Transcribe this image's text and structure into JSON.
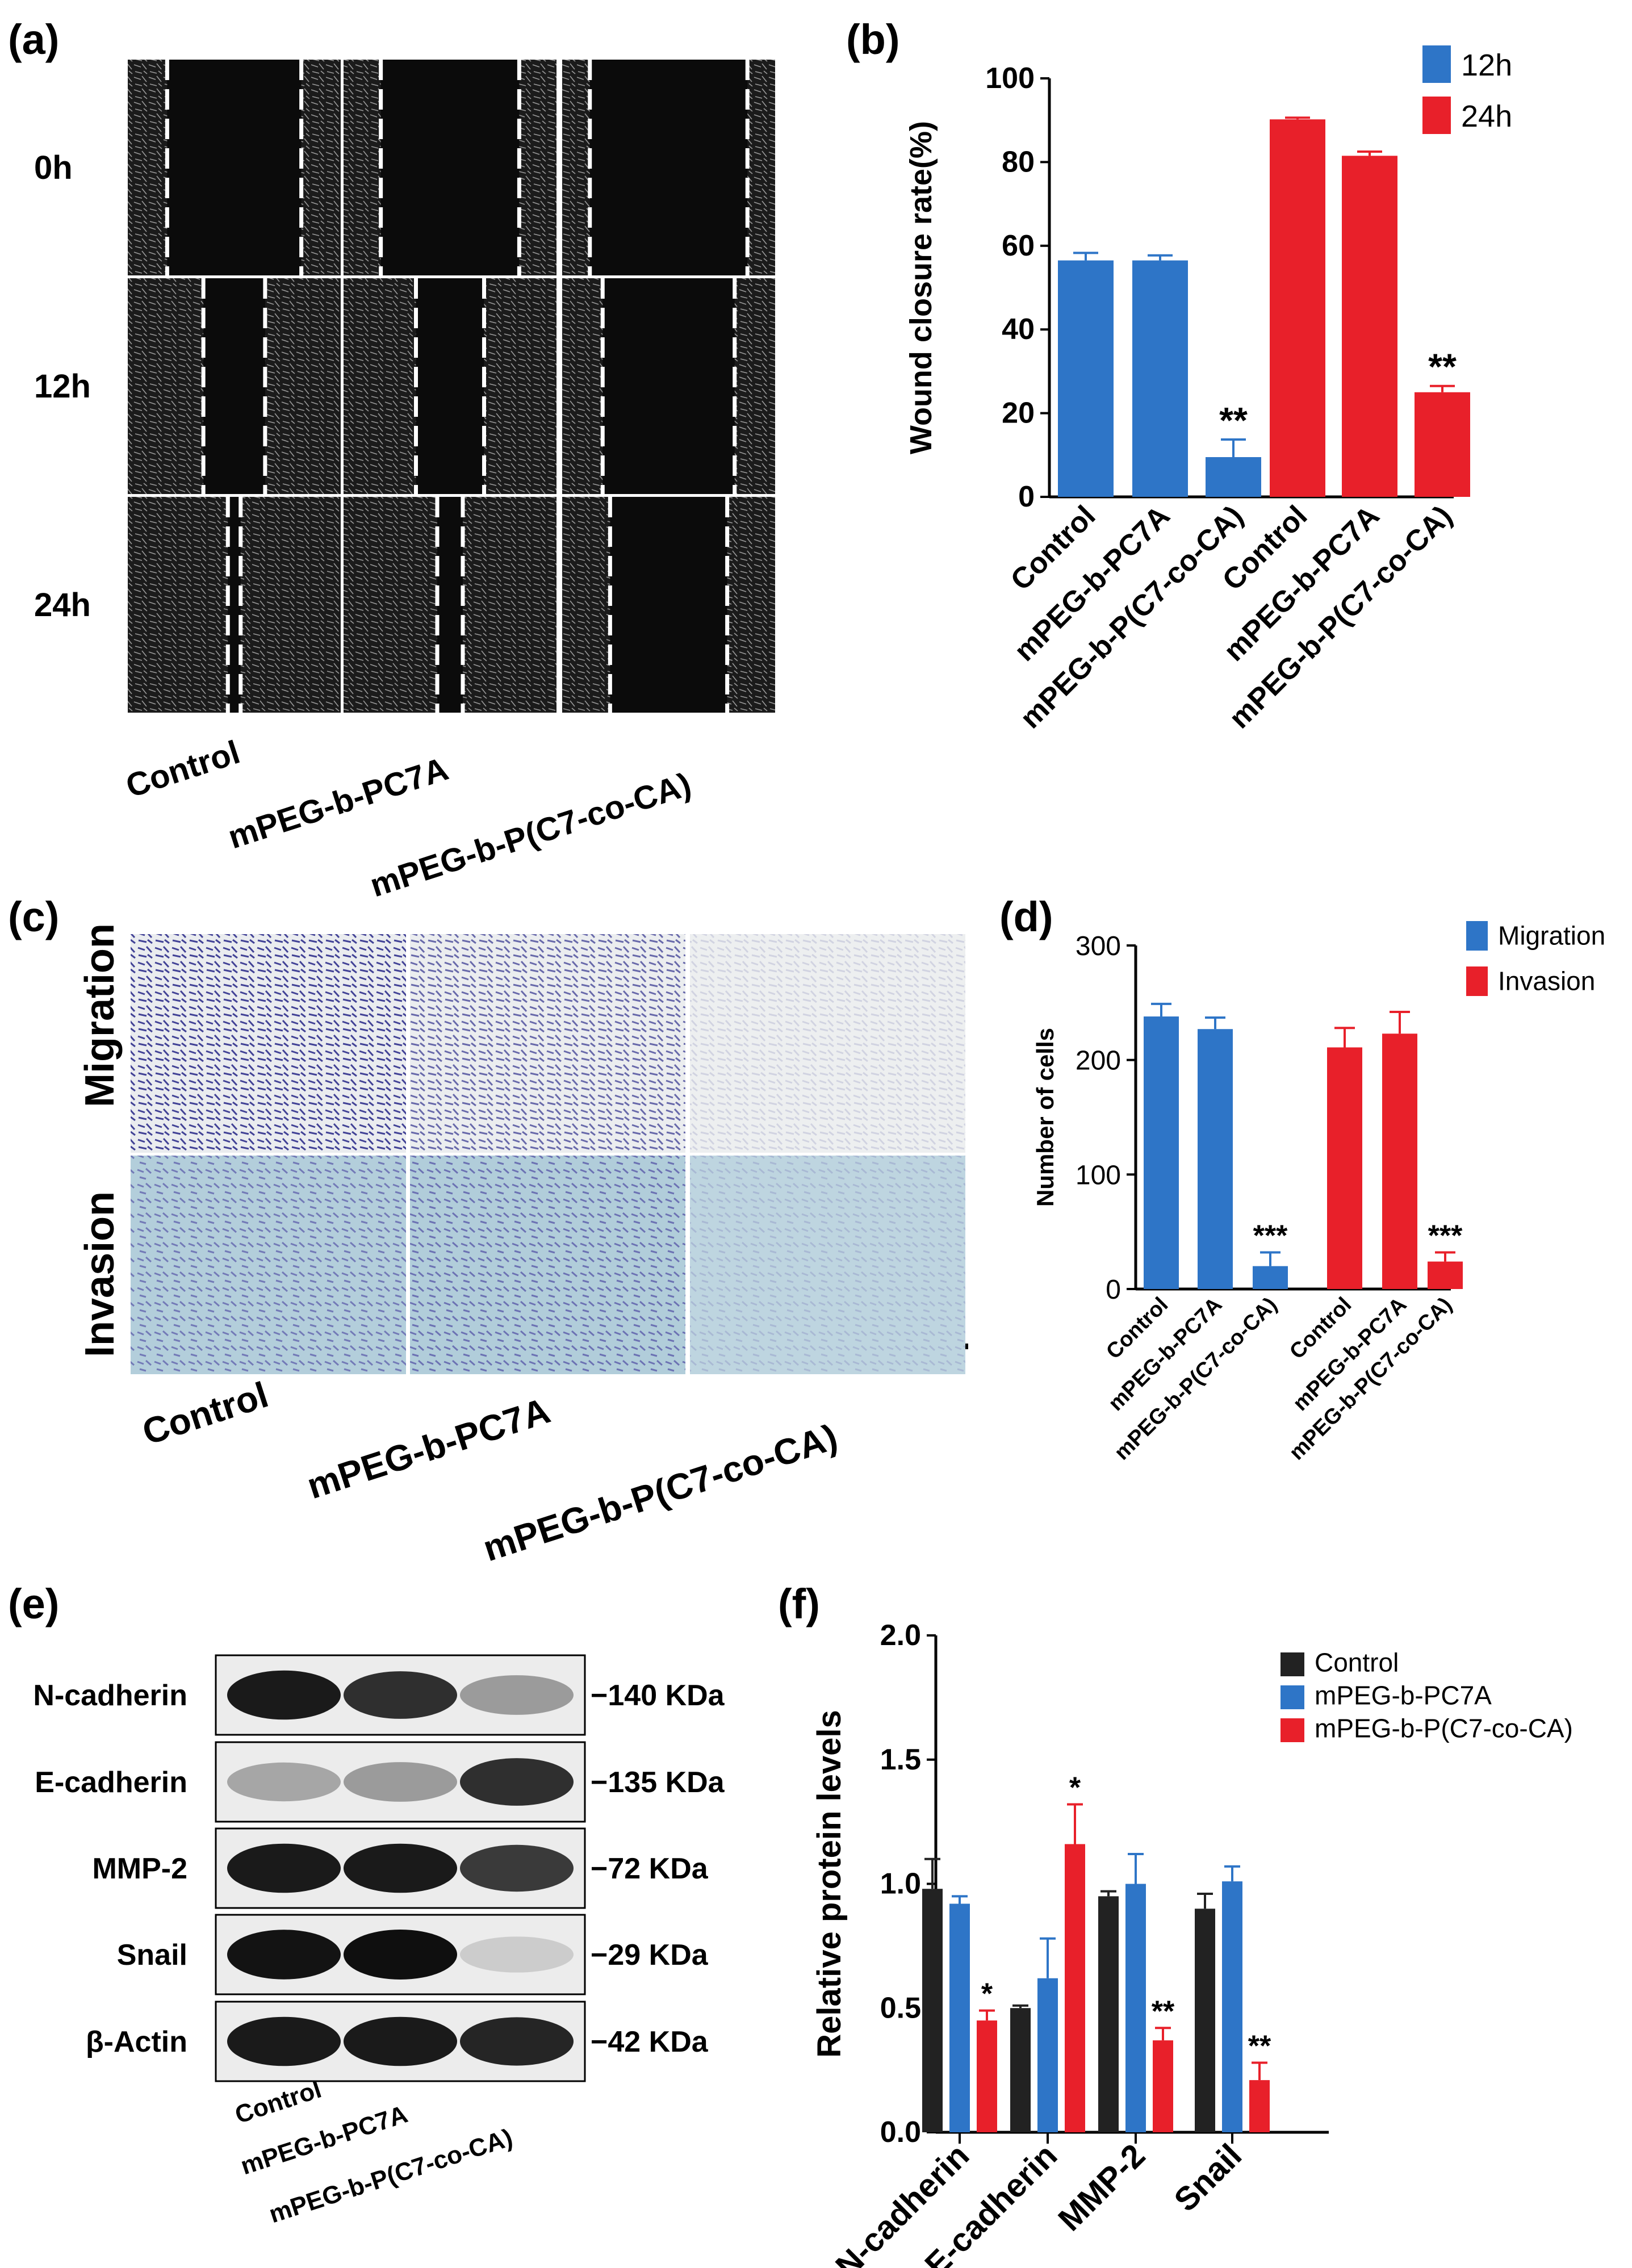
{
  "colors": {
    "blue": "#2e75c7",
    "red": "#e8202a",
    "black": "#1a1a1a",
    "gray_bar": "#222222"
  },
  "panel_a": {
    "label": "(a)",
    "rows": [
      "0h",
      "12h",
      "24h"
    ],
    "columns": [
      "Control",
      "mPEG-b-PC7A",
      "mPEG-b-P(C7-co-CA)"
    ],
    "gap_fractions": [
      [
        0.63,
        0.65,
        0.74
      ],
      [
        0.29,
        0.32,
        0.62
      ],
      [
        0.06,
        0.12,
        0.55
      ]
    ]
  },
  "panel_c": {
    "label": "(c)",
    "rows": [
      "Migration",
      "Invasion"
    ],
    "columns": [
      "Control",
      "mPEG-b-PC7A",
      "mPEG-b-P(C7-co-CA)"
    ],
    "stain_density": [
      [
        0.9,
        0.7,
        0.15
      ],
      [
        0.6,
        0.65,
        0.2
      ]
    ]
  },
  "panel_e": {
    "label": "(e)",
    "proteins": [
      "N-cadherin",
      "E-cadherin",
      "MMP-2",
      "Snail",
      "β-Actin"
    ],
    "sizes": [
      "−140 KDa",
      "−135 KDa",
      "−72 KDa",
      "−29 KDa",
      "−42 KDa"
    ],
    "lanes": [
      "Control",
      "mPEG-b-PC7A",
      "mPEG-b-P(C7-co-CA)"
    ],
    "band_intensity": [
      [
        0.95,
        0.85,
        0.35
      ],
      [
        0.3,
        0.35,
        0.85
      ],
      [
        0.95,
        0.95,
        0.8
      ],
      [
        0.98,
        1.0,
        0.12
      ],
      [
        0.95,
        0.95,
        0.9
      ]
    ]
  },
  "chart_data": [
    {
      "panel": "(b)",
      "type": "bar",
      "ylabel": "Wound closure rate(%)",
      "ylim": [
        0,
        100
      ],
      "yticks": [
        0,
        20,
        40,
        60,
        80,
        100
      ],
      "categories": [
        "Control",
        "mPEG-b-PC7A",
        "mPEG-b-P(C7-co-CA)"
      ],
      "series": [
        {
          "name": "12h",
          "color": "#2e75c7",
          "values": [
            56.5,
            56.5,
            9.5
          ],
          "errors": [
            1.8,
            1.2,
            4.2
          ],
          "sig": [
            "",
            "",
            "**"
          ]
        },
        {
          "name": "24h",
          "color": "#e8202a",
          "values": [
            90.2,
            81.5,
            25.0
          ],
          "errors": [
            0.4,
            1.0,
            1.5
          ],
          "sig": [
            "",
            "",
            "**"
          ]
        }
      ],
      "legend_position": "top-right"
    },
    {
      "panel": "(d)",
      "type": "bar",
      "ylabel": "Number of cells",
      "ylim": [
        0,
        300
      ],
      "yticks": [
        0,
        100,
        200,
        300
      ],
      "categories": [
        "Control",
        "mPEG-b-PC7A",
        "mPEG-b-P(C7-co-CA)"
      ],
      "series": [
        {
          "name": "Migration",
          "color": "#2e75c7",
          "values": [
            238,
            227,
            20
          ],
          "errors": [
            11,
            10,
            12
          ],
          "sig": [
            "",
            "",
            "***"
          ]
        },
        {
          "name": "Invasion",
          "color": "#e8202a",
          "values": [
            211,
            223,
            24
          ],
          "errors": [
            17,
            19,
            8
          ],
          "sig": [
            "",
            "",
            "***"
          ]
        }
      ],
      "legend_position": "top-right"
    },
    {
      "panel": "(f)",
      "type": "bar",
      "ylabel": "Relative protein levels",
      "ylim": [
        0,
        2.0
      ],
      "yticks": [
        "0.0",
        "0.5",
        "1.0",
        "1.5",
        "2.0"
      ],
      "categories": [
        "N-cadherin",
        "E-cadherin",
        "MMP-2",
        "Snail"
      ],
      "series": [
        {
          "name": "Control",
          "color": "#222222",
          "values": [
            0.98,
            0.5,
            0.95,
            0.9
          ],
          "errors": [
            0.12,
            0.01,
            0.02,
            0.06
          ],
          "sig": [
            "",
            "",
            "",
            ""
          ]
        },
        {
          "name": "mPEG-b-PC7A",
          "color": "#2e75c7",
          "values": [
            0.92,
            0.62,
            1.0,
            1.01
          ],
          "errors": [
            0.03,
            0.16,
            0.12,
            0.06
          ],
          "sig": [
            "",
            "",
            "",
            ""
          ]
        },
        {
          "name": "mPEG-b-P(C7-co-CA)",
          "color": "#e8202a",
          "values": [
            0.45,
            1.16,
            0.37,
            0.21
          ],
          "errors": [
            0.04,
            0.16,
            0.05,
            0.07
          ],
          "sig": [
            "*",
            "*",
            "**",
            "**"
          ]
        }
      ],
      "legend_position": "top-right"
    }
  ]
}
